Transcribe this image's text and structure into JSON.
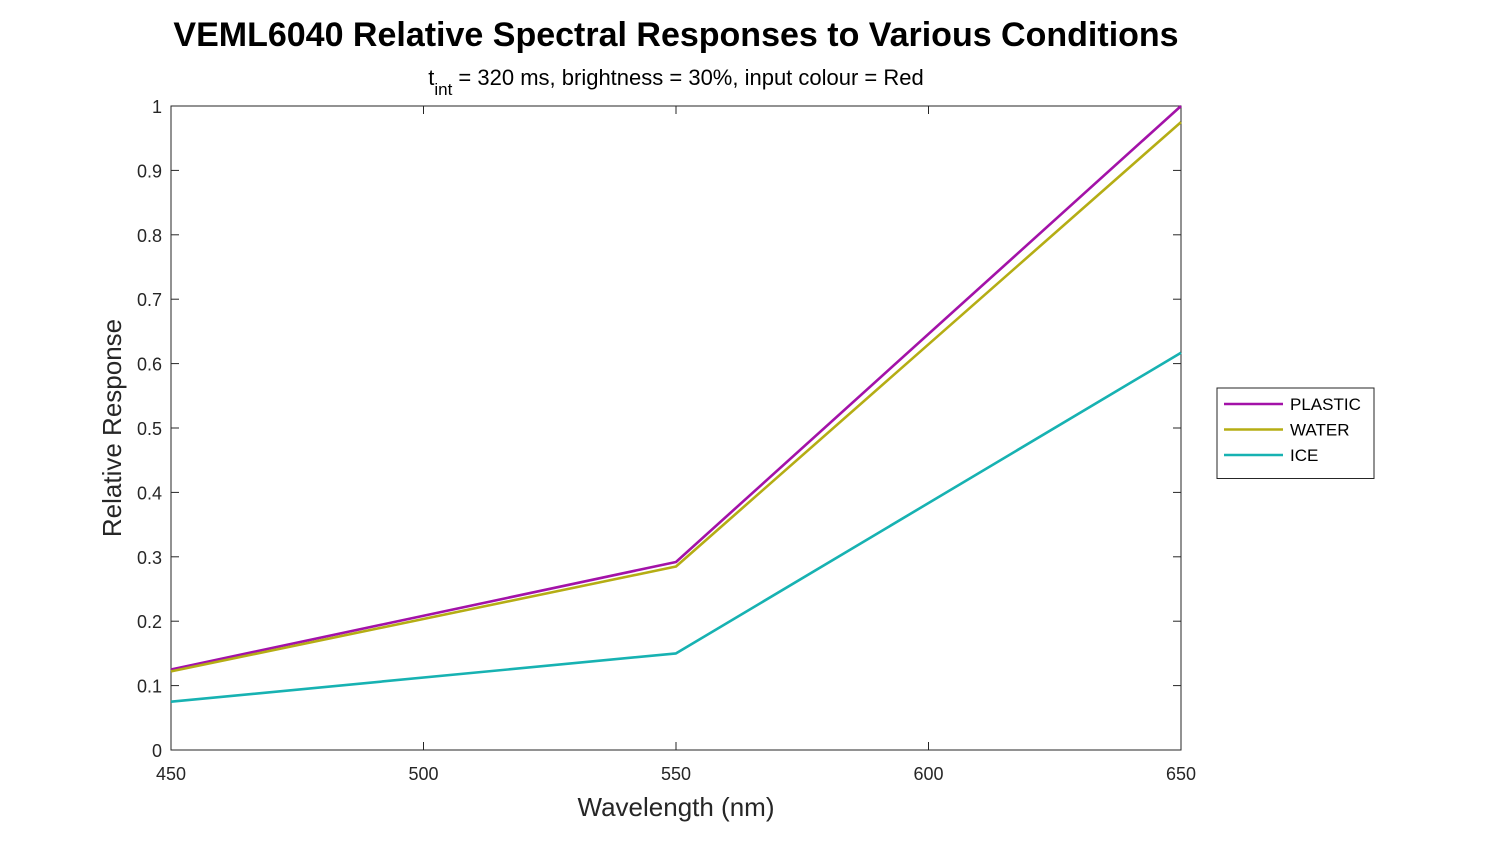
{
  "chart_data": {
    "type": "line",
    "title": "VEML6040 Relative Spectral Responses to Various Conditions",
    "subtitle": {
      "prefix": "t",
      "subscript": "int",
      "rest": " = 320 ms, brightness = 30%, input colour = Red"
    },
    "xlabel": "Wavelength (nm)",
    "ylabel": "Relative Response",
    "xlim": [
      450,
      650
    ],
    "ylim": [
      0,
      1
    ],
    "xticks": [
      450,
      500,
      550,
      600,
      650
    ],
    "yticks": [
      0,
      0.1,
      0.2,
      0.3,
      0.4,
      0.5,
      0.6,
      0.7,
      0.8,
      0.9,
      1
    ],
    "x": [
      450,
      550,
      650
    ],
    "series": [
      {
        "name": "PLASTIC",
        "color": "#a312a8",
        "values": [
          0.125,
          0.292,
          1.0
        ]
      },
      {
        "name": "WATER",
        "color": "#b5ad14",
        "values": [
          0.122,
          0.285,
          0.975
        ]
      },
      {
        "name": "ICE",
        "color": "#17b2b2",
        "values": [
          0.075,
          0.15,
          0.617
        ]
      }
    ],
    "grid": false,
    "legend_position": "outside-right"
  }
}
